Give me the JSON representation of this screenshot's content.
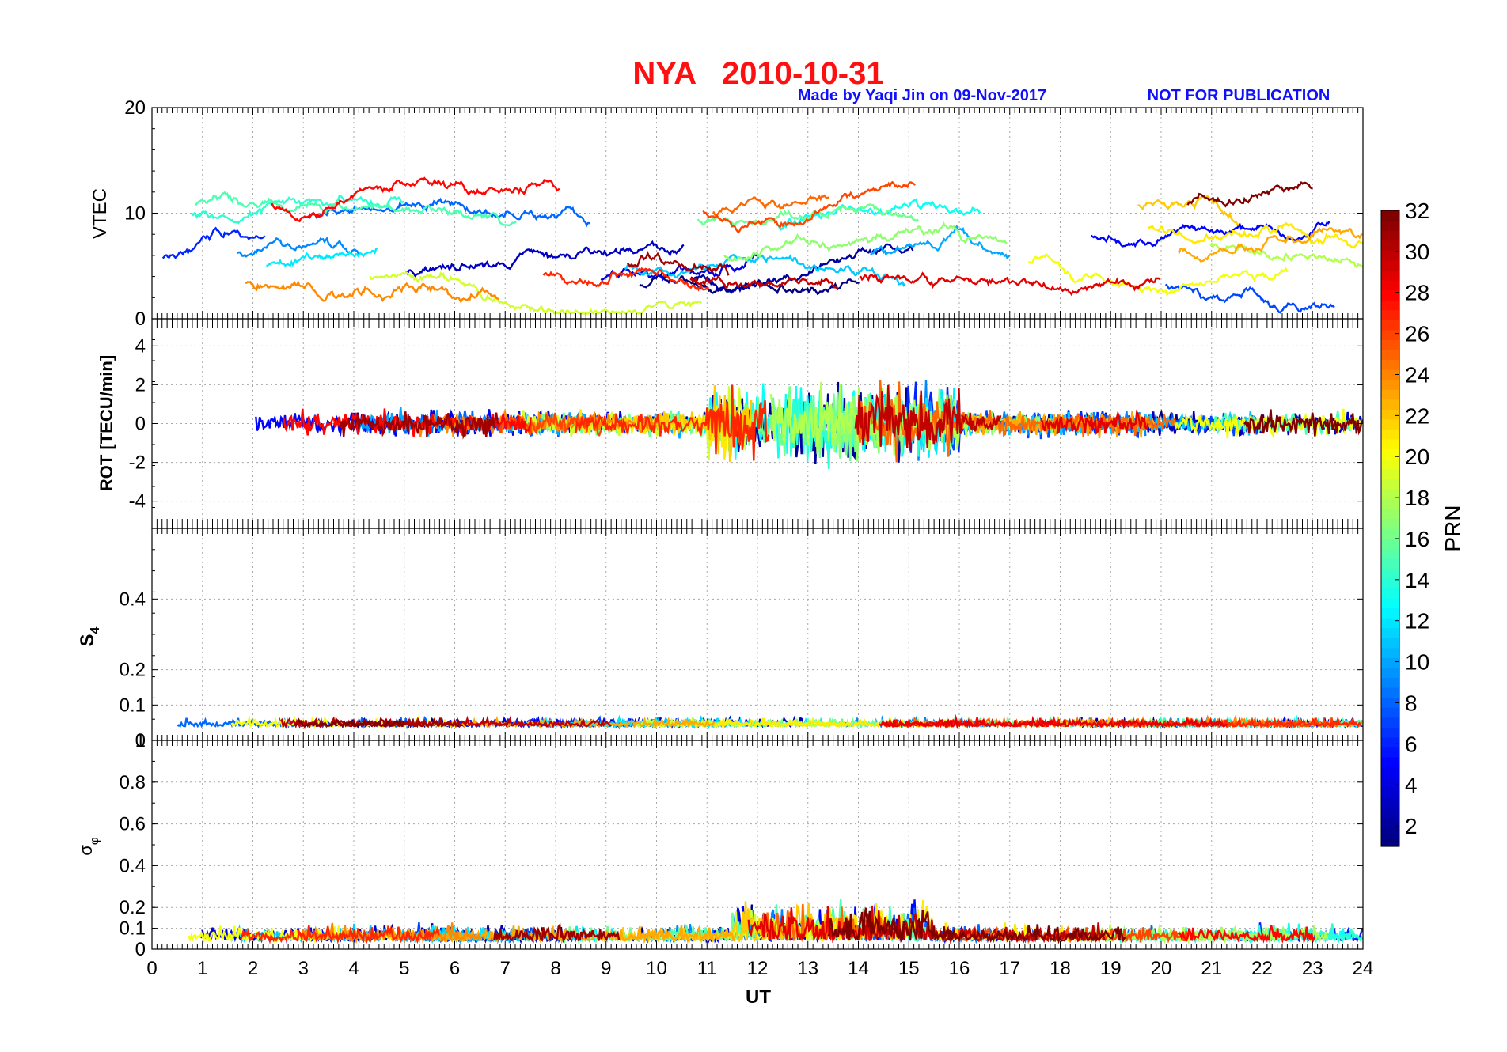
{
  "header": {
    "title": "NYA   2010-10-31",
    "credit": "Made by Yaqi Jin on 09-Nov-2017",
    "notice": "NOT FOR PUBLICATION"
  },
  "colors": {
    "title": "#ff1010",
    "credit": "#1010ff",
    "grid": "#a8a8a8",
    "axis": "#000000"
  },
  "chart_data": [
    {
      "type": "line",
      "panel": "vtec",
      "ylabel": "VTEC",
      "xlim": [
        0,
        24
      ],
      "ylim": [
        0,
        20
      ],
      "yticks": [
        0,
        10,
        20
      ],
      "xlabel": "",
      "grid": true
    },
    {
      "type": "line",
      "panel": "rot",
      "ylabel": "ROT [TECU/min]",
      "xlim": [
        0,
        24
      ],
      "ylim": [
        -5.4,
        5.4
      ],
      "yticks": [
        -4,
        -2,
        0,
        2,
        4
      ],
      "grid": true
    },
    {
      "type": "line",
      "panel": "s4",
      "ylabel": "S4",
      "xlim": [
        0,
        24
      ],
      "ylim": [
        0,
        0.6
      ],
      "yticks": [
        0,
        0.1,
        0.2,
        0.4
      ],
      "grid": true
    },
    {
      "type": "line",
      "panel": "sigma_phi",
      "ylabel": "σφ",
      "xlabel": "UT",
      "xlim": [
        0,
        24
      ],
      "ylim": [
        0,
        1
      ],
      "yticks": [
        0,
        0.1,
        0.2,
        0.4,
        0.6,
        0.8,
        1
      ],
      "xticks": [
        0,
        1,
        2,
        3,
        4,
        5,
        6,
        7,
        8,
        9,
        10,
        11,
        12,
        13,
        14,
        15,
        16,
        17,
        18,
        19,
        20,
        21,
        22,
        23,
        24
      ],
      "grid": true
    }
  ],
  "colorbar": {
    "label": "PRN",
    "range": [
      1,
      32
    ],
    "ticks": [
      2,
      4,
      6,
      8,
      10,
      12,
      14,
      16,
      18,
      20,
      22,
      24,
      26,
      28,
      30,
      32
    ],
    "colormap": "jet"
  }
}
